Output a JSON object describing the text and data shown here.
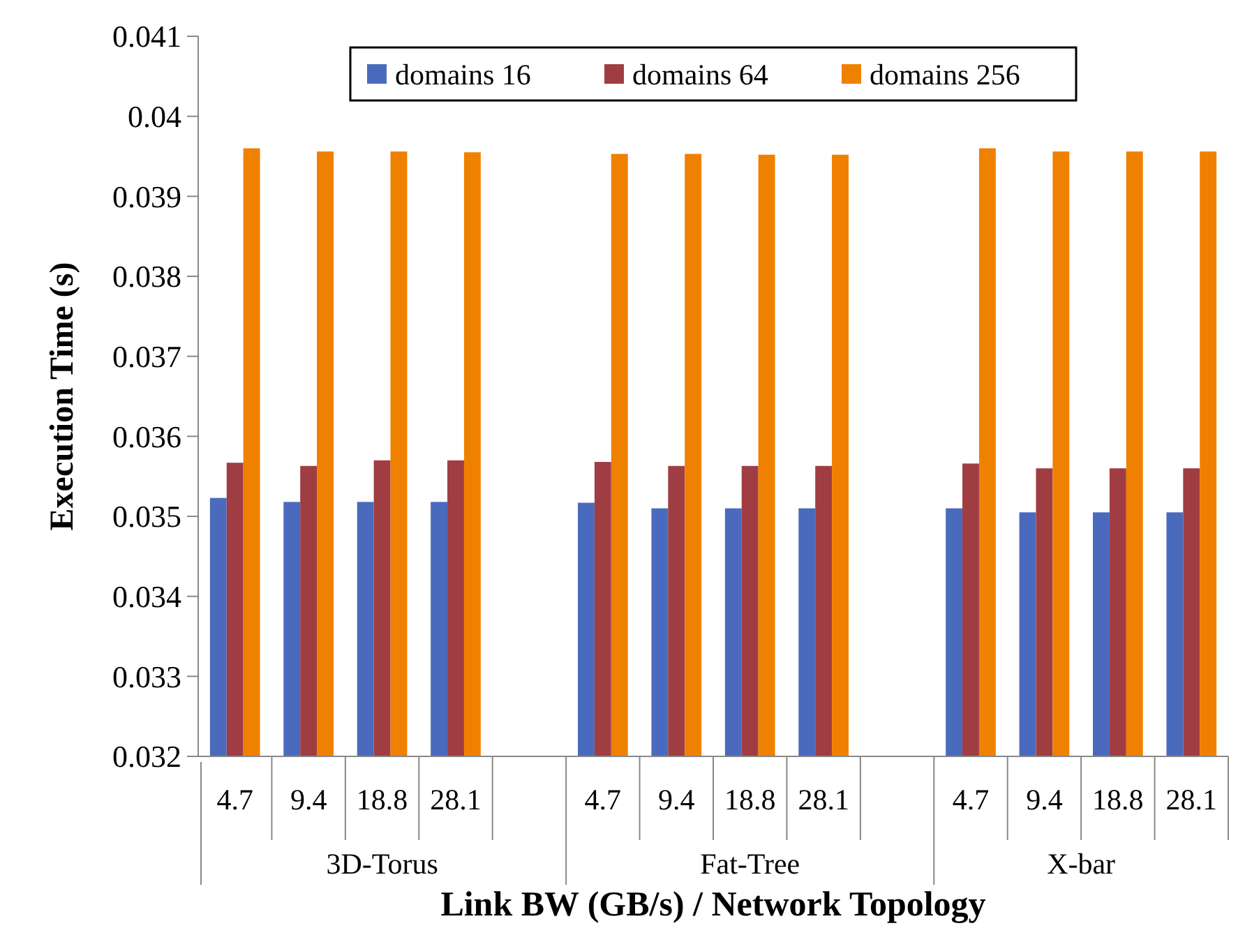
{
  "chart_data": {
    "type": "bar",
    "ylabel": "Execution Time (s)",
    "xlabel": "Link BW (GB/s) / Network Topology",
    "categories": [
      "4.7",
      "9.4",
      "18.8",
      "28.1",
      null,
      "4.7",
      "9.4",
      "18.8",
      "28.1",
      null,
      "4.7",
      "9.4",
      "18.8",
      "28.1"
    ],
    "series": [
      {
        "name": "domains 16",
        "color": "#4a6bbd",
        "values": [
          0.03523,
          0.03518,
          0.03518,
          0.03518,
          null,
          0.03517,
          0.0351,
          0.0351,
          0.0351,
          null,
          0.0351,
          0.03505,
          0.03505,
          0.03505
        ]
      },
      {
        "name": "domains 64",
        "color": "#a03d42",
        "values": [
          0.03567,
          0.03563,
          0.0357,
          0.0357,
          null,
          0.03568,
          0.03563,
          0.03563,
          0.03563,
          null,
          0.03566,
          0.0356,
          0.0356,
          0.0356
        ]
      },
      {
        "name": "domains 256",
        "color": "#f08000",
        "values": [
          0.0396,
          0.03956,
          0.03956,
          0.03955,
          null,
          0.03953,
          0.03953,
          0.03952,
          0.03952,
          null,
          0.0396,
          0.03956,
          0.03956,
          0.03956
        ]
      }
    ],
    "ylim": [
      0.032,
      0.041
    ],
    "yticks": [
      0.032,
      0.033,
      0.034,
      0.035,
      0.036,
      0.037,
      0.038,
      0.039,
      0.04,
      0.041
    ],
    "annotations": [
      "3D-Torus",
      "Fat-Tree",
      "X-bar"
    ],
    "legend": "top",
    "grid": false
  }
}
